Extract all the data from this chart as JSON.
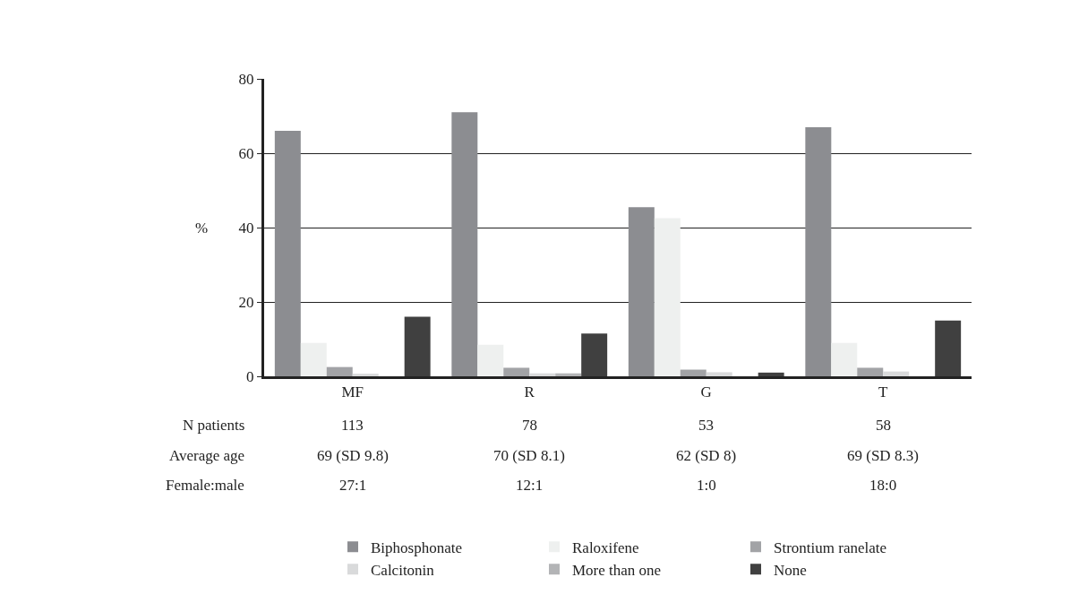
{
  "chart_data": {
    "type": "bar",
    "ylabel": "%",
    "categories": [
      "MF",
      "R",
      "G",
      "T"
    ],
    "series": [
      {
        "name": "Biphosphonate",
        "color": "#8c8d91",
        "values": [
          66,
          71,
          45.5,
          67
        ]
      },
      {
        "name": "Raloxifene",
        "color": "#eef0ef",
        "values": [
          9,
          8.5,
          42.5,
          9
        ]
      },
      {
        "name": "Strontium ranelate",
        "color": "#a2a3a6",
        "values": [
          2.5,
          2.3,
          1.8,
          2.3
        ]
      },
      {
        "name": "Calcitonin",
        "color": "#d9dadb",
        "values": [
          0.7,
          0.8,
          1.1,
          1.3
        ]
      },
      {
        "name": "More than one",
        "color": "#b3b4b6",
        "values": [
          0,
          0.8,
          0,
          0
        ]
      },
      {
        "name": "None",
        "color": "#404040",
        "values": [
          16,
          11.5,
          1,
          15
        ]
      }
    ],
    "ylim": [
      0,
      80
    ],
    "yticks": [
      0,
      20,
      40,
      60,
      80
    ],
    "grid": "y",
    "legend": "bottom",
    "annotations": [
      "N patients",
      "113",
      "78",
      "53",
      "58",
      "Average age",
      "69 (SD 9.8)",
      "70 (SD 8.1)",
      "62 (SD 8)",
      "69 (SD 8.3)",
      "Female:male",
      "27:1",
      "12:1",
      "1:0",
      "18:0"
    ]
  }
}
